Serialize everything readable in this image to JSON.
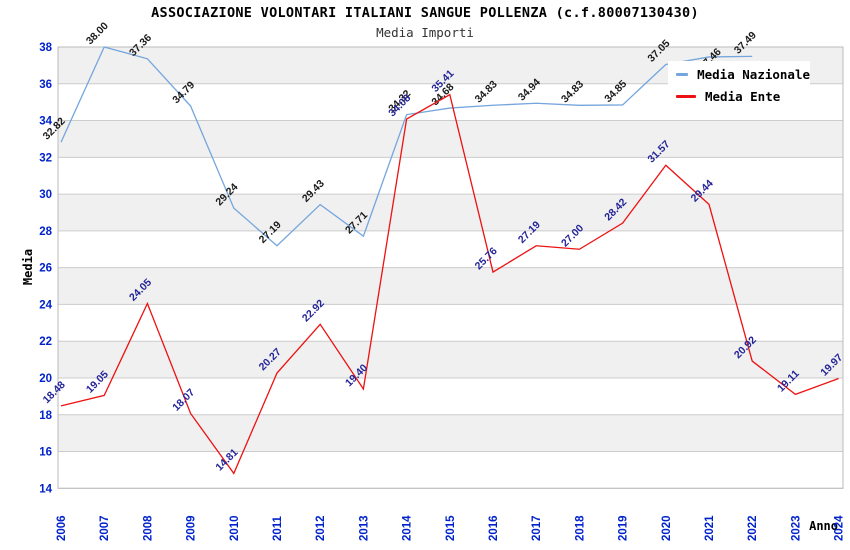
{
  "chart_data": {
    "type": "line",
    "title": "ASSOCIAZIONE VOLONTARI ITALIANI SANGUE POLLENZA (c.f.80007130430)",
    "subtitle": "Media Importi",
    "xlabel": "Anno",
    "ylabel": "Media",
    "categories": [
      "2006",
      "2007",
      "2008",
      "2009",
      "2010",
      "2011",
      "2012",
      "2013",
      "2014",
      "2015",
      "2016",
      "2017",
      "2018",
      "2019",
      "2020",
      "2021",
      "2022",
      "2023",
      "2024"
    ],
    "series": [
      {
        "name": "Media Nazionale",
        "color": "#74a6dd",
        "label_color": "#1a1a1a",
        "values": [
          32.82,
          38.0,
          37.36,
          34.79,
          29.24,
          27.19,
          29.43,
          27.71,
          34.32,
          34.68,
          34.83,
          34.94,
          34.83,
          34.85,
          37.05,
          37.46,
          37.49
        ]
      },
      {
        "name": "Media Ente",
        "color": "#ee1111",
        "label_color": "#242499",
        "values": [
          18.48,
          19.05,
          24.05,
          18.07,
          14.81,
          20.27,
          22.92,
          19.4,
          34.08,
          35.41,
          25.76,
          27.19,
          27.0,
          28.42,
          31.57,
          29.44,
          20.92,
          19.11,
          19.97
        ]
      }
    ],
    "ylim": [
      14,
      38
    ],
    "ytick_step": 2,
    "grid": true,
    "legend_position": "top-right",
    "colors": {
      "tick_label": "#0022cc",
      "grid": "#cccccc",
      "band": "#f0f0f0",
      "frame": "#bbbbbb",
      "background": "#ffffff"
    }
  }
}
